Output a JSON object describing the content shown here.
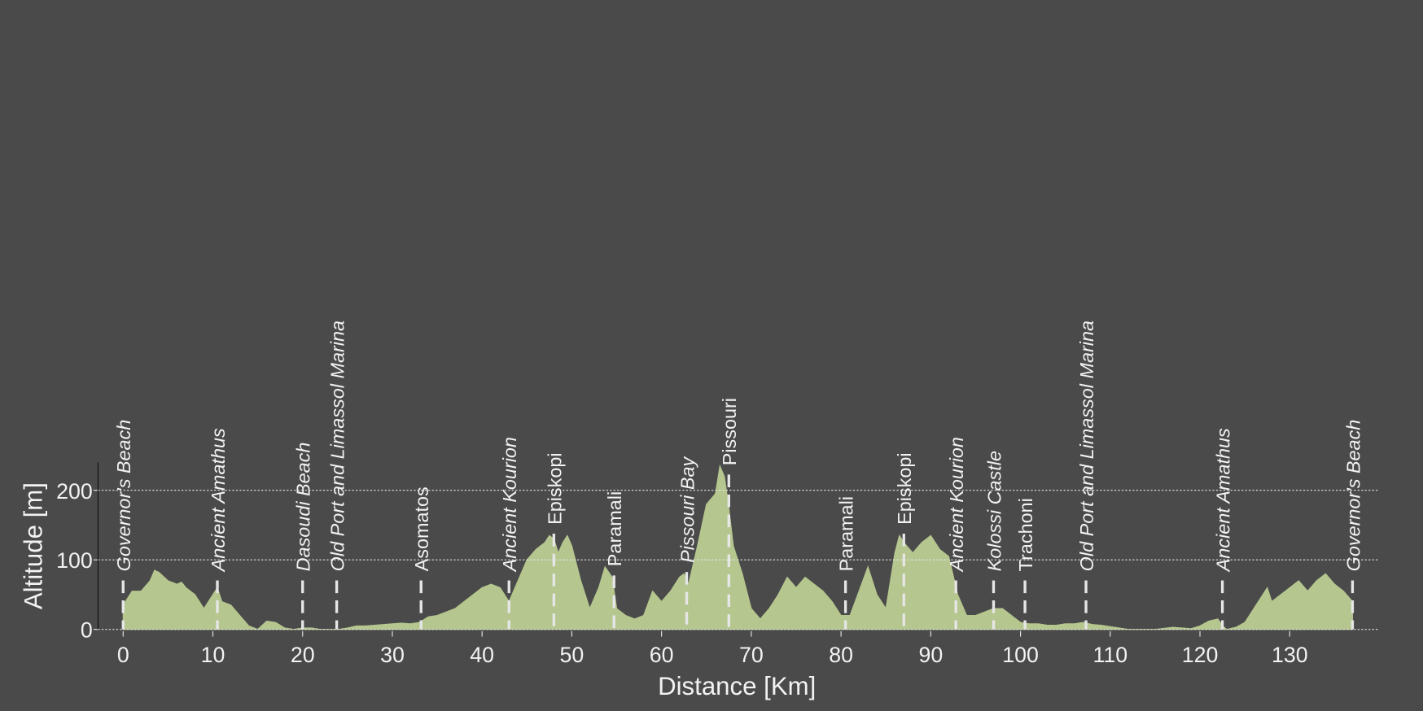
{
  "chart_data": {
    "type": "area",
    "xlabel": "Distance [Km]",
    "ylabel": "Altitude [m]",
    "x": [
      0,
      1,
      2,
      3,
      3.5,
      4,
      5,
      6,
      6.5,
      7,
      8,
      9,
      10,
      10.5,
      11,
      12,
      13,
      14,
      15,
      16,
      17,
      18,
      19,
      20,
      21,
      22,
      23,
      24,
      25,
      26,
      27,
      28,
      29,
      30,
      31,
      32,
      33,
      34,
      35,
      36,
      37,
      38,
      39,
      40,
      41,
      42,
      43,
      44,
      45,
      46,
      47,
      47.5,
      48,
      48.5,
      49,
      49.5,
      50,
      51,
      52,
      53,
      53.7,
      54.5,
      55,
      56,
      57,
      58,
      59,
      60,
      61,
      62,
      62.5,
      63,
      64,
      65,
      66,
      66.5,
      67,
      67.5,
      68,
      69,
      70,
      71,
      72,
      73,
      74,
      75,
      76,
      77,
      78,
      79,
      80,
      81,
      82,
      83,
      84,
      85,
      86,
      86.5,
      87,
      88,
      89,
      90,
      91,
      92,
      93,
      94,
      95,
      96,
      97,
      98,
      99,
      100,
      101,
      102,
      103,
      104,
      105,
      106,
      107,
      108,
      109,
      110,
      111,
      112,
      115,
      117,
      119,
      120,
      121,
      122,
      122.5,
      123,
      124,
      125,
      126,
      127,
      127.5,
      128,
      129,
      130,
      131,
      132,
      133,
      134,
      135,
      136,
      137
    ],
    "y": [
      35,
      55,
      55,
      70,
      85,
      82,
      70,
      65,
      68,
      60,
      50,
      30,
      50,
      60,
      40,
      35,
      20,
      5,
      0,
      12,
      10,
      2,
      0,
      2,
      2,
      0,
      0,
      0,
      2,
      5,
      5,
      6,
      7,
      8,
      9,
      8,
      10,
      18,
      20,
      25,
      30,
      40,
      50,
      60,
      65,
      60,
      40,
      70,
      100,
      115,
      125,
      135,
      130,
      110,
      125,
      135,
      120,
      70,
      30,
      60,
      90,
      75,
      30,
      20,
      15,
      20,
      55,
      40,
      55,
      75,
      80,
      65,
      120,
      180,
      195,
      235,
      220,
      175,
      120,
      80,
      30,
      15,
      30,
      50,
      75,
      60,
      75,
      65,
      55,
      40,
      20,
      20,
      55,
      90,
      50,
      30,
      110,
      135,
      125,
      110,
      125,
      135,
      115,
      105,
      50,
      20,
      20,
      25,
      30,
      30,
      20,
      10,
      8,
      8,
      6,
      6,
      8,
      8,
      10,
      7,
      6,
      4,
      2,
      0,
      0,
      3,
      1,
      5,
      12,
      15,
      5,
      0,
      3,
      10,
      30,
      50,
      60,
      40,
      50,
      60,
      70,
      55,
      70,
      80,
      65,
      55,
      40
    ],
    "color": "#b5c68f",
    "xlim": [
      -2.8,
      140
    ],
    "ylim": [
      0,
      240
    ],
    "xticks": [
      0,
      10,
      20,
      30,
      40,
      50,
      60,
      70,
      80,
      90,
      100,
      110,
      120,
      130
    ],
    "yticks": [
      0,
      100,
      200
    ],
    "grid": true,
    "waypoints": [
      {
        "name": "Governor's Beach",
        "x": 0,
        "italic": true
      },
      {
        "name": "Ancient Amathus",
        "x": 10.5,
        "italic": true
      },
      {
        "name": "Dasoudi Beach",
        "x": 20,
        "italic": true
      },
      {
        "name": "Old Port and Limassol Marina",
        "x": 23.8,
        "italic": true
      },
      {
        "name": "Asomatos",
        "x": 33.2,
        "italic": false
      },
      {
        "name": "Ancient Kourion",
        "x": 43,
        "italic": true
      },
      {
        "name": "Episkopi",
        "x": 48,
        "italic": false
      },
      {
        "name": "Paramali",
        "x": 54.7,
        "italic": false
      },
      {
        "name": "Pissouri Bay",
        "x": 62.8,
        "italic": true
      },
      {
        "name": "Pissouri",
        "x": 67.5,
        "italic": false
      },
      {
        "name": "Paramali",
        "x": 80.5,
        "italic": false
      },
      {
        "name": "Episkopi",
        "x": 87,
        "italic": false
      },
      {
        "name": "Ancient Kourion",
        "x": 92.8,
        "italic": true
      },
      {
        "name": "Kolossi Castle",
        "x": 97,
        "italic": true
      },
      {
        "name": "Trachoni",
        "x": 100.5,
        "italic": false
      },
      {
        "name": "Old Port and Limassol Marina",
        "x": 107.3,
        "italic": true
      },
      {
        "name": "Ancient Amathus",
        "x": 122.5,
        "italic": true
      },
      {
        "name": "Governor's Beach",
        "x": 137,
        "italic": true
      }
    ]
  }
}
